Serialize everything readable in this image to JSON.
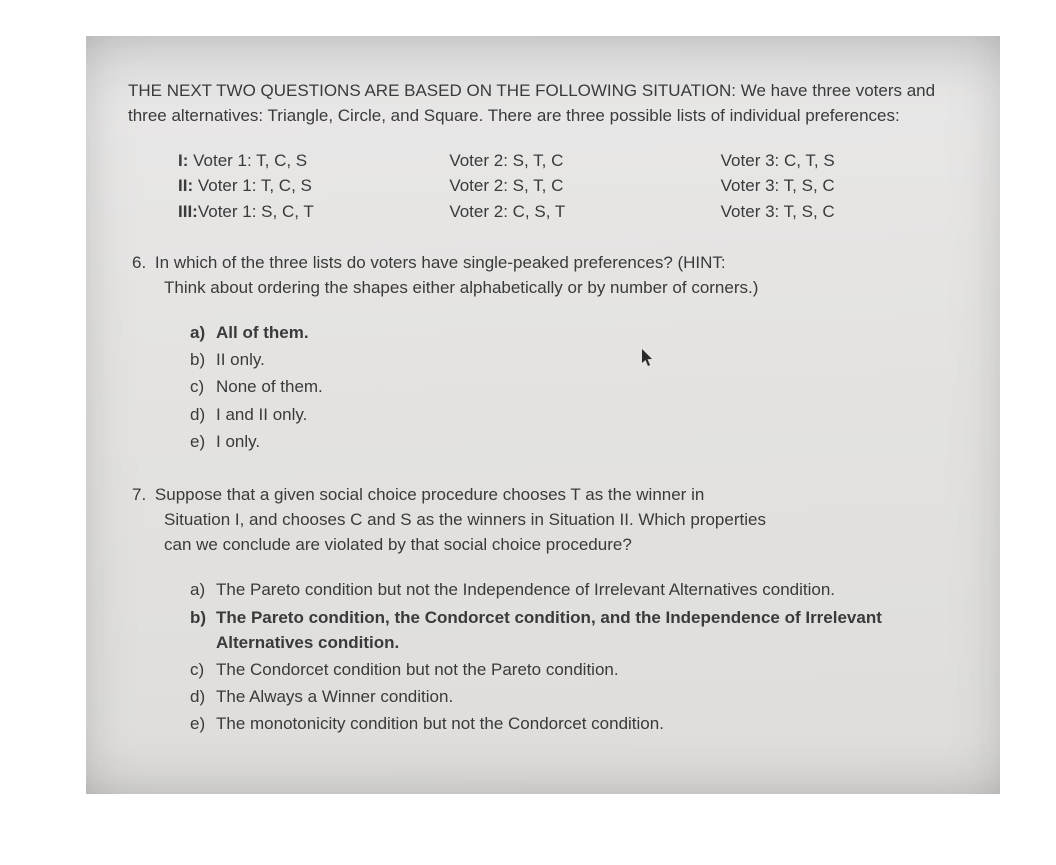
{
  "intro": "THE NEXT TWO QUESTIONS ARE BASED ON THE FOLLOWING SITUATION: We have three voters and three alternatives: Triangle, Circle, and Square. There are three possible lists of individual preferences:",
  "pref": {
    "rows": [
      {
        "label": "I:",
        "v1": "Voter 1: T, C, S",
        "v2": "Voter 2: S, T, C",
        "v3": "Voter 3: C, T, S"
      },
      {
        "label": "II:",
        "v1": "Voter 1: T, C, S",
        "v2": "Voter 2: S, T, C",
        "v3": "Voter 3: T, S, C"
      },
      {
        "label": "III:",
        "v1": "Voter 1: S, C, T",
        "v2": "Voter 2: C, S, T",
        "v3": "Voter 3: T, S, C"
      }
    ]
  },
  "q6": {
    "number": "6.",
    "text_line1": "In which of the three lists do voters have single-peaked preferences? (HINT:",
    "text_line2": "Think about ordering the shapes either alphabetically or by number of corners.)",
    "options": [
      {
        "letter": "a",
        "text": "All of them.",
        "bold": true
      },
      {
        "letter": "b",
        "text": "II only.",
        "bold": false
      },
      {
        "letter": "c",
        "text": "None of them.",
        "bold": false
      },
      {
        "letter": "d",
        "text": "I and II only.",
        "bold": false
      },
      {
        "letter": "e",
        "text": "I only.",
        "bold": false
      }
    ]
  },
  "q7": {
    "number": "7.",
    "text_line1": "Suppose that a given social choice procedure chooses T as the winner in",
    "text_line2": "Situation I, and chooses C and S as the winners in Situation II. Which properties",
    "text_line3": "can we conclude are violated by that social choice procedure?",
    "options": [
      {
        "letter": "a",
        "text": "The Pareto condition but not the Independence of Irrelevant Alternatives condition.",
        "bold": false
      },
      {
        "letter": "b",
        "text": "The Pareto condition, the Condorcet condition, and the Independence of Irrelevant Alternatives condition.",
        "bold": true
      },
      {
        "letter": "c",
        "text": "The Condorcet condition but not the Pareto condition.",
        "bold": false
      },
      {
        "letter": "d",
        "text": "The Always a Winner condition.",
        "bold": false
      },
      {
        "letter": "e",
        "text": "The monotonicity condition but not the Condorcet condition.",
        "bold": false
      }
    ]
  }
}
